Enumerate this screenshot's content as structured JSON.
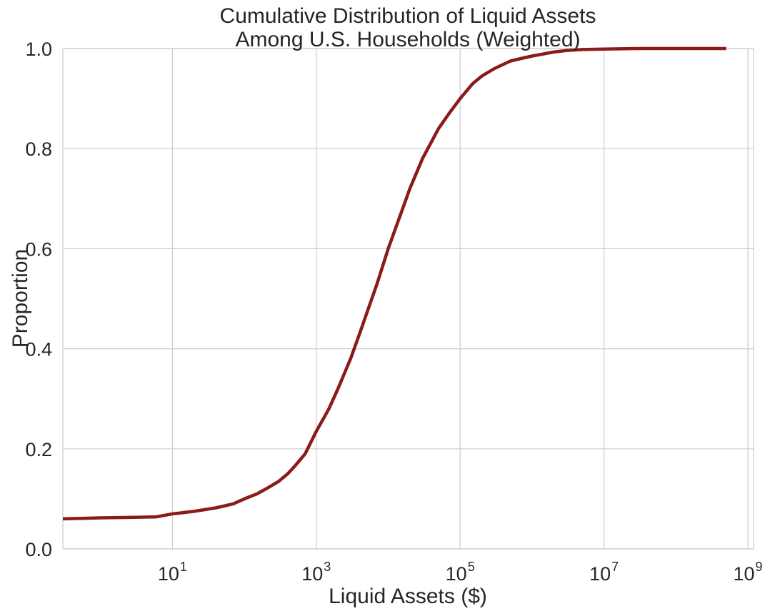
{
  "chart_data": {
    "type": "line",
    "title_line1": "Cumulative Distribution of Liquid Assets",
    "title_line2": "Among U.S. Households (Weighted)",
    "xlabel": "Liquid Assets ($)",
    "ylabel": "Proportion",
    "x_scale": "log10",
    "xlim": [
      0.3,
      1200000000.0
    ],
    "ylim": [
      0,
      1
    ],
    "grid": true,
    "x_ticks": [
      {
        "value": 10,
        "base": "10",
        "exp": "1"
      },
      {
        "value": 1000,
        "base": "10",
        "exp": "3"
      },
      {
        "value": 100000,
        "base": "10",
        "exp": "5"
      },
      {
        "value": 10000000,
        "base": "10",
        "exp": "7"
      },
      {
        "value": 1000000000,
        "base": "10",
        "exp": "9"
      }
    ],
    "y_ticks": [
      {
        "value": 0.0,
        "label": "0.0"
      },
      {
        "value": 0.2,
        "label": "0.2"
      },
      {
        "value": 0.4,
        "label": "0.4"
      },
      {
        "value": 0.6,
        "label": "0.6"
      },
      {
        "value": 0.8,
        "label": "0.8"
      },
      {
        "value": 1.0,
        "label": "1.0"
      }
    ],
    "series": [
      {
        "color": "#8b1a1a",
        "x": [
          0.3,
          1,
          3,
          6,
          10,
          20,
          40,
          70,
          100,
          150,
          200,
          300,
          400,
          500,
          700,
          1000,
          1500,
          2000,
          3000,
          4000,
          5000,
          7000,
          10000,
          15000,
          20000,
          30000,
          50000,
          70000,
          100000,
          150000,
          200000,
          300000,
          500000,
          700000,
          1000000,
          2000000,
          3000000,
          5000000,
          10000000,
          30000000,
          100000000,
          500000000
        ],
        "y": [
          0.06,
          0.062,
          0.063,
          0.064,
          0.07,
          0.075,
          0.082,
          0.09,
          0.1,
          0.11,
          0.12,
          0.135,
          0.15,
          0.165,
          0.19,
          0.235,
          0.28,
          0.32,
          0.38,
          0.43,
          0.47,
          0.53,
          0.6,
          0.67,
          0.72,
          0.78,
          0.84,
          0.87,
          0.9,
          0.93,
          0.945,
          0.96,
          0.975,
          0.98,
          0.985,
          0.993,
          0.996,
          0.998,
          0.999,
          1.0,
          1.0,
          1.0
        ]
      }
    ]
  }
}
